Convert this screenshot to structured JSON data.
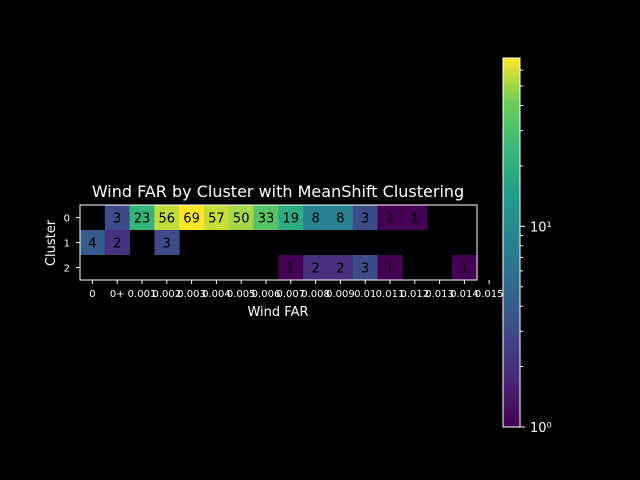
{
  "chart_data": {
    "type": "heatmap",
    "title": "Wind FAR by Cluster with MeanShift Clustering",
    "xlabel": "Wind FAR",
    "ylabel": "Cluster",
    "x_tick_labels": [
      "0",
      "0+",
      "0.001",
      "0.002",
      "0.003",
      "0.004",
      "0.005",
      "0.006",
      "0.007",
      "0.008",
      "0.009",
      "0.01",
      "0.011",
      "0.012",
      "0.013",
      "0.014",
      "0.015"
    ],
    "y_tick_labels": [
      "0",
      "1",
      "2"
    ],
    "scale": "log",
    "colormap": "viridis",
    "color_range": [
      1,
      69
    ],
    "colorbar_ticks": [
      {
        "value": 1,
        "label": "10⁰"
      },
      {
        "value": 10,
        "label": "10¹"
      }
    ],
    "values": [
      [
        null,
        3,
        23,
        56,
        69,
        57,
        50,
        33,
        19,
        8,
        8,
        3,
        1,
        1,
        null,
        null
      ],
      [
        4,
        2,
        null,
        3,
        null,
        null,
        null,
        null,
        null,
        null,
        null,
        null,
        null,
        null,
        null,
        null
      ],
      [
        null,
        null,
        null,
        null,
        null,
        null,
        null,
        null,
        1,
        2,
        2,
        3,
        1,
        null,
        null,
        1
      ]
    ],
    "grid": false,
    "legend": "colorbar right"
  }
}
